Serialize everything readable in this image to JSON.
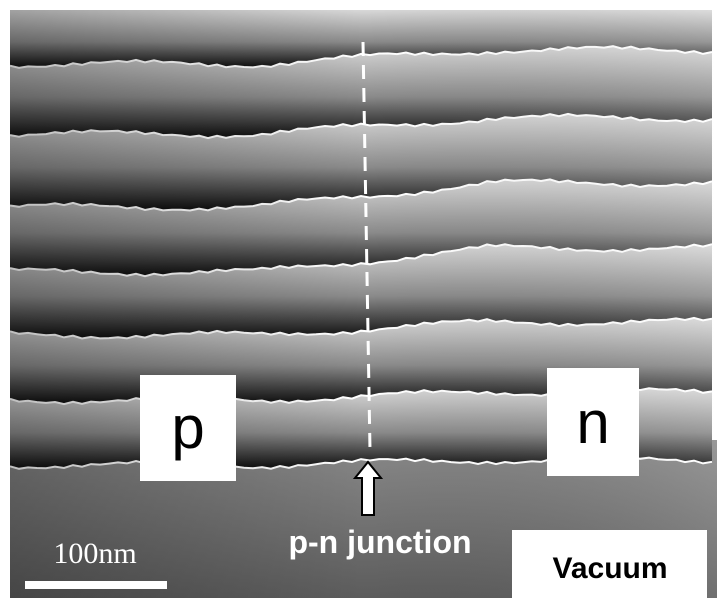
{
  "labels": {
    "p_region": "p",
    "n_region": "n",
    "junction": "p-n junction",
    "vacuum": "Vacuum",
    "scale_bar": "100nm"
  }
}
